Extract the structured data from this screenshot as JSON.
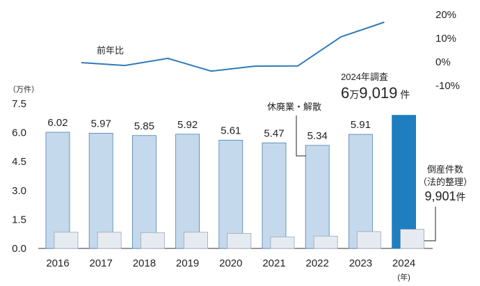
{
  "chart_data": {
    "type": "bar",
    "categories": [
      "2016",
      "2017",
      "2018",
      "2019",
      "2020",
      "2021",
      "2022",
      "2023",
      "2024"
    ],
    "series": [
      {
        "name": "休廃業・解散",
        "values": [
          6.02,
          5.97,
          5.85,
          5.92,
          5.61,
          5.47,
          5.34,
          5.91,
          6.9019
        ],
        "labels": [
          "6.02",
          "5.97",
          "5.85",
          "5.92",
          "5.61",
          "5.47",
          "5.34",
          "5.91",
          null
        ]
      },
      {
        "name": "倒産件数（法的整理）",
        "values": [
          0.84,
          0.84,
          0.82,
          0.84,
          0.78,
          0.6,
          0.64,
          0.87,
          0.9901
        ]
      }
    ],
    "line": {
      "name": "前年比",
      "axis_unit": "%",
      "values": [
        -0.3,
        -1.5,
        1.5,
        -3.9,
        -1.8,
        -1.7,
        10.6,
        16.8
      ]
    },
    "y_left": {
      "unit": "（万件）",
      "ticks": [
        "0.0",
        "1.5",
        "3.0",
        "4.5",
        "6.0",
        "7.5"
      ],
      "ylim": [
        0,
        7.5
      ]
    },
    "y_right": {
      "ticks": [
        "20%",
        "10%",
        "0%",
        "-10%"
      ],
      "ylim": [
        -10,
        20
      ]
    },
    "xunit": "(年)",
    "highlight_color": "#1f7ebf",
    "bar_color": "#c5d9ec",
    "bar_edge": "#4a7fb0",
    "sub_bar_color": "#e6ebf1",
    "line_color": "#2f7ab8"
  },
  "annotations": {
    "survey_title": "2024年調査",
    "survey_total_num1": "6",
    "survey_total_unit1": "万",
    "survey_total_num2": "9,019",
    "survey_total_unit2": "件",
    "kyuhaigyo_label": "休廃業・解散",
    "bankruptcy_label_1": "倒産件数",
    "bankruptcy_label_2": "（法的整理）",
    "bankruptcy_value": "9,901",
    "bankruptcy_unit": "件"
  }
}
